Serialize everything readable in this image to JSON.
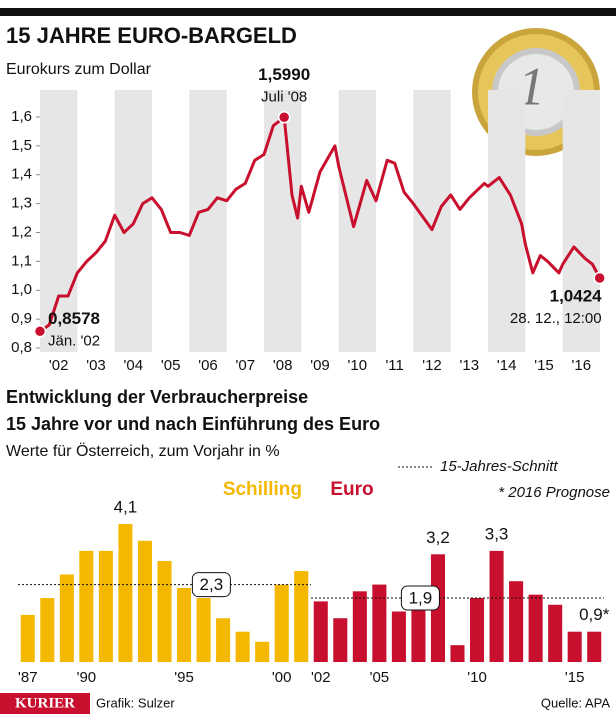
{
  "header": {
    "title": "15 JAHRE EURO-BARGELD"
  },
  "chart_data": [
    {
      "type": "line",
      "title": "Eurokurs zum Dollar",
      "color": "#c8102e",
      "x": [
        2002.0,
        2002.25,
        2002.5,
        2002.75,
        2003.0,
        2003.25,
        2003.5,
        2003.75,
        2004.0,
        2004.25,
        2004.5,
        2004.75,
        2005.0,
        2005.25,
        2005.5,
        2005.75,
        2006.0,
        2006.25,
        2006.5,
        2006.75,
        2007.0,
        2007.25,
        2007.5,
        2007.75,
        2008.0,
        2008.25,
        2008.54,
        2008.75,
        2008.9,
        2009.0,
        2009.2,
        2009.5,
        2009.9,
        2010.0,
        2010.4,
        2010.75,
        2011.0,
        2011.3,
        2011.5,
        2011.75,
        2012.0,
        2012.5,
        2012.75,
        2013.0,
        2013.25,
        2013.5,
        2013.9,
        2014.0,
        2014.3,
        2014.6,
        2014.9,
        2015.0,
        2015.2,
        2015.4,
        2015.6,
        2015.9,
        2016.0,
        2016.3,
        2016.6,
        2016.8,
        2016.99
      ],
      "values": [
        0.8578,
        0.88,
        0.98,
        0.98,
        1.06,
        1.1,
        1.13,
        1.17,
        1.26,
        1.2,
        1.23,
        1.3,
        1.32,
        1.28,
        1.2,
        1.2,
        1.19,
        1.27,
        1.28,
        1.32,
        1.31,
        1.35,
        1.37,
        1.45,
        1.47,
        1.57,
        1.599,
        1.33,
        1.25,
        1.36,
        1.27,
        1.41,
        1.5,
        1.43,
        1.22,
        1.38,
        1.31,
        1.45,
        1.44,
        1.34,
        1.3,
        1.21,
        1.29,
        1.33,
        1.28,
        1.32,
        1.37,
        1.36,
        1.39,
        1.33,
        1.23,
        1.16,
        1.06,
        1.12,
        1.1,
        1.06,
        1.09,
        1.15,
        1.11,
        1.09,
        1.0424
      ],
      "value_labels": [
        "0,8578",
        null,
        null,
        null,
        null,
        null,
        null,
        null,
        null,
        null,
        null,
        null,
        null,
        null,
        null,
        null,
        null,
        null,
        null,
        null,
        null,
        null,
        null,
        null,
        null,
        null,
        "1,5990",
        null,
        null,
        null,
        null,
        null,
        null,
        null,
        null,
        null,
        null,
        null,
        null,
        null,
        null,
        null,
        null,
        null,
        null,
        null,
        null,
        null,
        null,
        null,
        null,
        null,
        null,
        null,
        null,
        null,
        null,
        null,
        null,
        null,
        "1,0424"
      ],
      "value_notes": [
        "Jän. '02",
        null,
        null,
        null,
        null,
        null,
        null,
        null,
        null,
        null,
        null,
        null,
        null,
        null,
        null,
        null,
        null,
        null,
        null,
        null,
        null,
        null,
        null,
        null,
        null,
        null,
        "Juli '08",
        null,
        null,
        null,
        null,
        null,
        null,
        null,
        null,
        null,
        null,
        null,
        null,
        null,
        null,
        null,
        null,
        null,
        null,
        null,
        null,
        null,
        null,
        null,
        null,
        null,
        null,
        null,
        null,
        null,
        null,
        null,
        null,
        null,
        "28. 12., 12:00"
      ],
      "xlim": [
        2002,
        2017
      ],
      "xticks": [
        {
          "value": 2002.5,
          "label": "'02"
        },
        {
          "value": 2003.5,
          "label": "'03"
        },
        {
          "value": 2004.5,
          "label": "'04"
        },
        {
          "value": 2005.5,
          "label": "'05"
        },
        {
          "value": 2006.5,
          "label": "'06"
        },
        {
          "value": 2007.5,
          "label": "'07"
        },
        {
          "value": 2008.5,
          "label": "'08"
        },
        {
          "value": 2009.5,
          "label": "'09"
        },
        {
          "value": 2010.5,
          "label": "'10"
        },
        {
          "value": 2011.5,
          "label": "'11"
        },
        {
          "value": 2012.5,
          "label": "'12"
        },
        {
          "value": 2013.5,
          "label": "'13"
        },
        {
          "value": 2014.5,
          "label": "'14"
        },
        {
          "value": 2015.5,
          "label": "'15"
        },
        {
          "value": 2016.5,
          "label": "'16"
        }
      ],
      "ylim": [
        0.8,
        1.6
      ],
      "yticks": [
        {
          "value": 0.8,
          "label": "0,8"
        },
        {
          "value": 0.9,
          "label": "0,9"
        },
        {
          "value": 1.0,
          "label": "1,0"
        },
        {
          "value": 1.1,
          "label": "1,1"
        },
        {
          "value": 1.2,
          "label": "1,2"
        },
        {
          "value": 1.3,
          "label": "1,3"
        },
        {
          "value": 1.4,
          "label": "1,4"
        },
        {
          "value": 1.5,
          "label": "1,5"
        },
        {
          "value": 1.6,
          "label": "1,6"
        }
      ],
      "banded_columns": true
    },
    {
      "type": "bar",
      "title": "Entwicklung der Verbraucherpreise",
      "title2": "15 Jahre vor und nach Einführung des Euro",
      "subtitle": "Werte für Österreich, zum Vorjahr in %",
      "categories": [
        "'87",
        null,
        null,
        "'90",
        null,
        null,
        null,
        null,
        "'95",
        null,
        null,
        null,
        null,
        "'00",
        null,
        "'02",
        null,
        null,
        "'05",
        null,
        null,
        null,
        null,
        "'10",
        null,
        null,
        null,
        null,
        "'15",
        null
      ],
      "series": [
        {
          "name": "Schilling",
          "color": "#f5b800",
          "mean": 2.3,
          "mean_label": "2,3",
          "values": [
            1.4,
            1.9,
            2.6,
            3.3,
            3.3,
            4.1,
            3.6,
            3.0,
            2.2,
            1.9,
            1.3,
            0.9,
            0.6,
            2.3,
            2.7,
            null,
            null,
            null,
            null,
            null,
            null,
            null,
            null,
            null,
            null,
            null,
            null,
            null,
            null,
            null
          ],
          "value_labels": [
            null,
            null,
            null,
            null,
            null,
            "4,1",
            null,
            null,
            null,
            null,
            null,
            null,
            null,
            null,
            null,
            null,
            null,
            null,
            null,
            null,
            null,
            null,
            null,
            null,
            null,
            null,
            null,
            null,
            null,
            null
          ]
        },
        {
          "name": "Euro",
          "color": "#c8102e",
          "mean": 1.9,
          "mean_label": "1,9",
          "values": [
            null,
            null,
            null,
            null,
            null,
            null,
            null,
            null,
            null,
            null,
            null,
            null,
            null,
            null,
            null,
            1.8,
            1.3,
            2.1,
            2.3,
            1.5,
            2.2,
            3.2,
            0.5,
            1.9,
            3.3,
            2.4,
            2.0,
            1.7,
            0.9,
            0.9
          ],
          "value_labels": [
            null,
            null,
            null,
            null,
            null,
            null,
            null,
            null,
            null,
            null,
            null,
            null,
            null,
            null,
            null,
            null,
            null,
            null,
            null,
            null,
            null,
            "3,2",
            null,
            null,
            "3,3",
            null,
            null,
            null,
            null,
            "0,9*"
          ]
        }
      ],
      "ylim": [
        0,
        4.5
      ],
      "mean_legend": "15-Jahres-Schnitt",
      "note": "* 2016 Prognose"
    }
  ],
  "footer": {
    "brand": "KURIER",
    "credit": "Grafik: Sulzer",
    "source": "Quelle: APA"
  }
}
